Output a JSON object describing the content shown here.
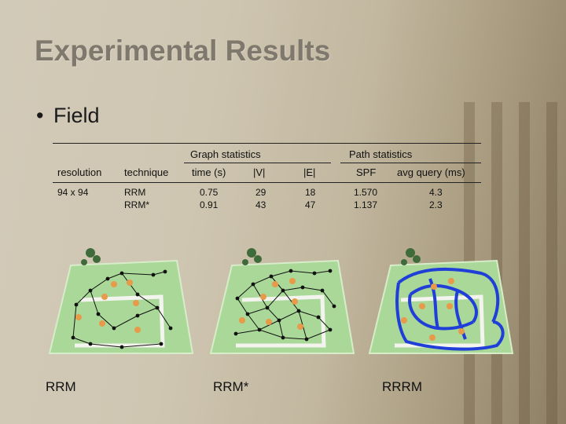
{
  "slide": {
    "title": "Experimental Results",
    "bullet": "Field"
  },
  "table": {
    "group_headers": {
      "graph": "Graph statistics",
      "path": "Path statistics"
    },
    "columns": {
      "resolution": "resolution",
      "technique": "technique",
      "time": "time (s)",
      "v": "|V|",
      "e": "|E|",
      "spf": "SPF",
      "query": "avg query (ms)"
    },
    "row": {
      "resolution": "94 x 94",
      "technique": [
        "RRM",
        "RRM*"
      ],
      "time": [
        "0.75",
        "0.91"
      ],
      "v": [
        "29",
        "43"
      ],
      "e": [
        "18",
        "47"
      ],
      "spf": [
        "1.570",
        "1.137"
      ],
      "query": [
        "4.3",
        "2.3"
      ]
    }
  },
  "figures": {
    "captions": [
      "RRM",
      "RRM*",
      "RRRM"
    ]
  },
  "colors": {
    "field": "#a9d898",
    "wall": "#f4f4ee",
    "node": "#111111",
    "obstacle": "#e69a4a",
    "rrrm_path": "#1f3fd8",
    "title": "#7f786d"
  }
}
